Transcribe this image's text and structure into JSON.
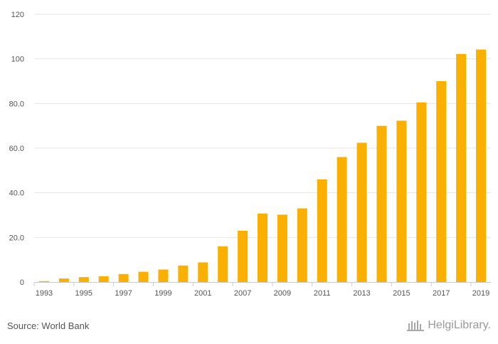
{
  "chart_data": {
    "type": "bar",
    "categories": [
      "1993",
      "1994",
      "1995",
      "1996",
      "1997",
      "1998",
      "1999",
      "2000",
      "2001",
      "2006",
      "2007",
      "2008",
      "2009",
      "2010",
      "2011",
      "2012",
      "2013",
      "2014",
      "2015",
      "2016",
      "2017",
      "2018",
      "2019"
    ],
    "tick_labels": [
      "1993",
      "1995",
      "1997",
      "1999",
      "2001",
      "2007",
      "2009",
      "2011",
      "2013",
      "2015",
      "2017",
      "2019"
    ],
    "values": [
      0.4,
      1.6,
      2.2,
      2.6,
      3.6,
      4.6,
      5.6,
      7.4,
      8.8,
      16.0,
      23.0,
      30.7,
      30.2,
      33.0,
      46.0,
      56.0,
      62.4,
      70.0,
      72.3,
      80.5,
      90.0,
      102.2,
      104.2
    ],
    "yticks": [
      "0",
      "20.0",
      "40.0",
      "60.0",
      "80.0",
      "100",
      "120"
    ],
    "ylim": [
      0,
      120
    ],
    "grid": true,
    "bar_color": "#F9B000"
  },
  "footer": {
    "source": "Source: World Bank",
    "brand": "HelgiLibrary."
  }
}
